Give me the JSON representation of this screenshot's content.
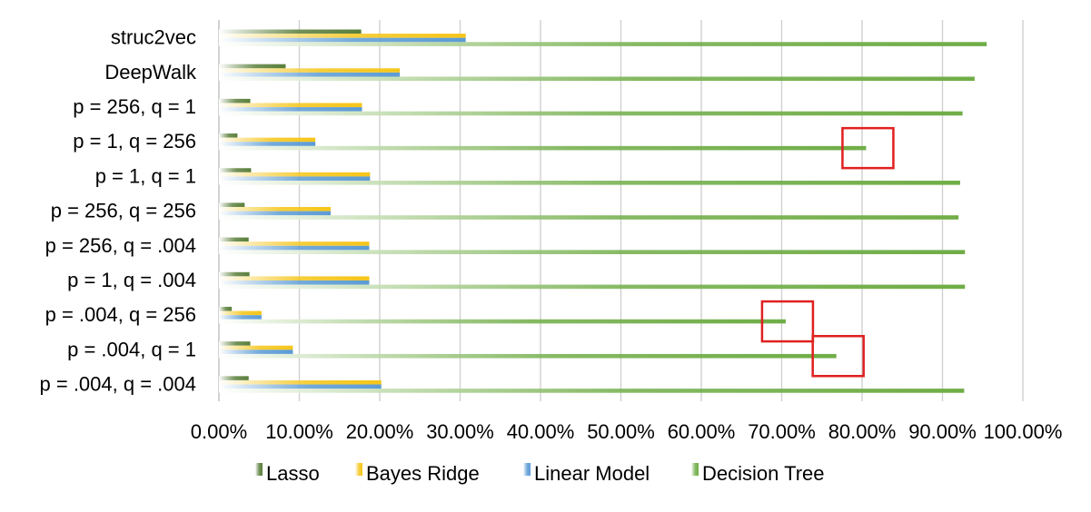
{
  "chart_data": {
    "type": "bar",
    "orientation": "horizontal",
    "categories": [
      "struc2vec",
      "DeepWalk",
      "p = 256, q = 1",
      "p = 1, q = 256",
      "p = 1, q = 1",
      "p = 256, q = 256",
      "p = 256, q = .004",
      "p = 1, q = .004",
      "p = .004, q = 256",
      "p = .004, q = 1",
      "p = .004, q = .004"
    ],
    "series": [
      {
        "name": "Lasso",
        "color": "#5a7f3c",
        "values": [
          17.7,
          8.3,
          3.9,
          2.3,
          4.0,
          3.2,
          3.7,
          3.8,
          1.6,
          3.9,
          3.7
        ]
      },
      {
        "name": "Bayes Ridge",
        "color": "#f5c518",
        "values": [
          30.7,
          22.5,
          17.8,
          12.0,
          18.8,
          13.9,
          18.7,
          18.7,
          5.3,
          9.2,
          20.2
        ]
      },
      {
        "name": "Linear Model",
        "color": "#5b9bd5",
        "values": [
          30.7,
          22.5,
          17.8,
          12.0,
          18.8,
          13.9,
          18.7,
          18.7,
          5.3,
          9.2,
          20.2
        ]
      },
      {
        "name": "Decision Tree",
        "color": "#70ad47",
        "values": [
          95.5,
          94.0,
          92.5,
          80.5,
          92.2,
          92.0,
          92.8,
          92.8,
          70.5,
          76.8,
          92.7
        ]
      }
    ],
    "xlim": [
      0,
      100
    ],
    "xticks": [
      "0.00%",
      "10.00%",
      "20.00%",
      "30.00%",
      "40.00%",
      "50.00%",
      "60.00%",
      "70.00%",
      "80.00%",
      "90.00%",
      "100.00%"
    ],
    "grid": "vertical",
    "legend_position": "bottom",
    "highlight_boxes": [
      {
        "category": "p = 1, q = 256",
        "series": "Decision Tree",
        "color": "#e02020"
      },
      {
        "category": "p = .004, q = 256",
        "series": "Decision Tree",
        "color": "#e02020"
      },
      {
        "category": "p = .004, q = 1",
        "series": "Decision Tree",
        "color": "#e02020"
      }
    ]
  }
}
